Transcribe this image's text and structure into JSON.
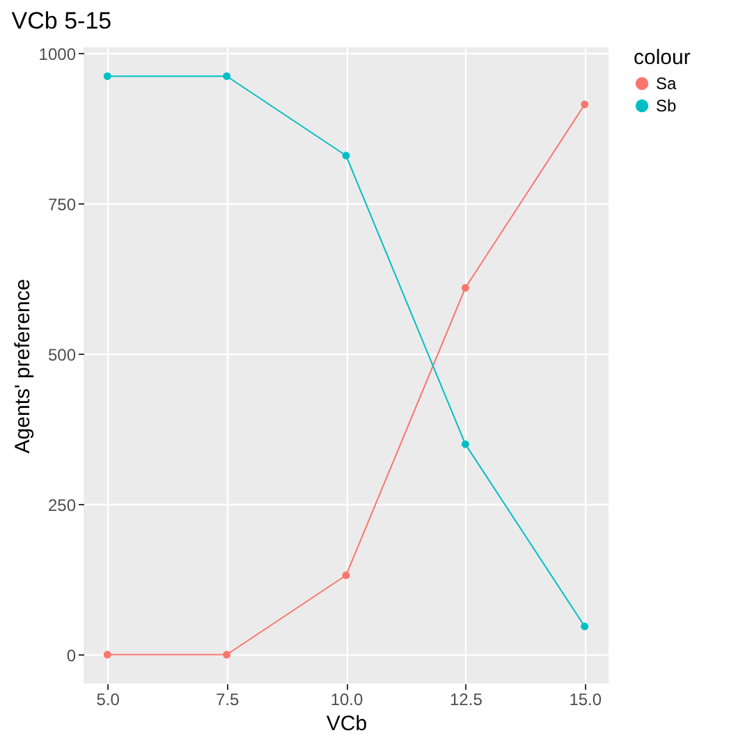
{
  "chart_data": {
    "type": "line",
    "title": "VCb 5-15",
    "xlabel": "VCb",
    "ylabel": "Agents' preference",
    "legend_title": "colour",
    "x": [
      5,
      7.5,
      10,
      12.5,
      15
    ],
    "series": [
      {
        "name": "Sa",
        "color": "#f8766d",
        "values": [
          0,
          0,
          132,
          610,
          915
        ]
      },
      {
        "name": "Sb",
        "color": "#00bfc4",
        "values": [
          962,
          962,
          830,
          350,
          47
        ]
      }
    ],
    "xlim": [
      4.5,
      15.5
    ],
    "xticks": [
      {
        "value": 5,
        "label": "5.0"
      },
      {
        "value": 7.5,
        "label": "7.5"
      },
      {
        "value": 10,
        "label": "10.0"
      },
      {
        "value": 12.5,
        "label": "12.5"
      },
      {
        "value": 15,
        "label": "15.0"
      }
    ],
    "ylim": [
      -48,
      1010
    ],
    "yticks": [
      0,
      250,
      500,
      750,
      1000
    ],
    "grid": true,
    "legend": "right",
    "marker": "circle",
    "line_style": "solid"
  }
}
